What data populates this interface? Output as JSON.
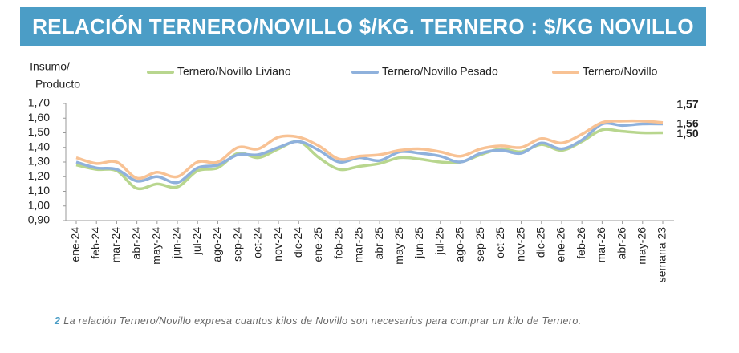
{
  "chart_data": {
    "type": "line",
    "title": "RELACIÓN TERNERO/NOVILLO $/KG. TERNERO : $/KG NOVILLO",
    "ylabel_lines": [
      "Insumo/",
      "Producto"
    ],
    "categories": [
      "ene-24",
      "feb-24",
      "mar-24",
      "abr-24",
      "may-24",
      "jun-24",
      "jul-24",
      "ago-24",
      "sep-24",
      "oct-24",
      "nov-24",
      "dic-24",
      "ene-25",
      "feb-25",
      "mar-25",
      "abr-25",
      "may-25",
      "jun-25",
      "jul-25",
      "ago-25",
      "sep-25",
      "oct-25",
      "nov-25",
      "dic-25",
      "ene-26",
      "feb-26",
      "mar-26",
      "abr-26",
      "may-26",
      "semana 23"
    ],
    "series": [
      {
        "name": "Ternero/Novillo Liviano",
        "color": "#b8d68e",
        "label_color": "#a9cf7c",
        "values": [
          1.28,
          1.25,
          1.24,
          1.12,
          1.15,
          1.13,
          1.24,
          1.26,
          1.36,
          1.33,
          1.39,
          1.44,
          1.33,
          1.25,
          1.27,
          1.29,
          1.33,
          1.32,
          1.3,
          1.3,
          1.35,
          1.39,
          1.37,
          1.42,
          1.38,
          1.44,
          1.52,
          1.51,
          1.5,
          1.5
        ],
        "value_labels": [
          null,
          null,
          null,
          null,
          null,
          null,
          null,
          null,
          null,
          null,
          null,
          null,
          null,
          null,
          null,
          null,
          null,
          null,
          null,
          null,
          null,
          null,
          null,
          null,
          null,
          null,
          null,
          null,
          null,
          "1,50"
        ]
      },
      {
        "name": "Ternero/Novillo Pesado",
        "color": "#8fb1dc",
        "label_color": "#4a86c8",
        "values": [
          1.3,
          1.26,
          1.25,
          1.17,
          1.2,
          1.16,
          1.26,
          1.28,
          1.35,
          1.35,
          1.4,
          1.44,
          1.38,
          1.3,
          1.33,
          1.31,
          1.37,
          1.36,
          1.34,
          1.3,
          1.36,
          1.38,
          1.36,
          1.43,
          1.39,
          1.45,
          1.56,
          1.55,
          1.56,
          1.56
        ],
        "value_labels": [
          null,
          null,
          null,
          null,
          null,
          null,
          null,
          null,
          null,
          null,
          null,
          null,
          null,
          null,
          null,
          null,
          null,
          null,
          null,
          null,
          null,
          null,
          null,
          null,
          null,
          null,
          null,
          null,
          null,
          "1,56"
        ]
      },
      {
        "name": "Ternero/Novillo",
        "color": "#f8c294",
        "label_color": "#f0a868",
        "values": [
          1.33,
          1.29,
          1.3,
          1.19,
          1.23,
          1.2,
          1.3,
          1.3,
          1.4,
          1.39,
          1.47,
          1.47,
          1.41,
          1.32,
          1.34,
          1.35,
          1.38,
          1.39,
          1.37,
          1.34,
          1.39,
          1.41,
          1.4,
          1.46,
          1.43,
          1.49,
          1.57,
          1.58,
          1.58,
          1.57
        ],
        "value_labels": [
          null,
          null,
          null,
          null,
          null,
          null,
          null,
          null,
          null,
          null,
          null,
          null,
          null,
          null,
          null,
          null,
          null,
          null,
          null,
          null,
          null,
          null,
          null,
          null,
          null,
          null,
          null,
          null,
          null,
          "1,57"
        ]
      }
    ],
    "ylim": [
      0.9,
      1.7
    ],
    "yticks": [
      {
        "value": 0.9,
        "label": "0,90"
      },
      {
        "value": 1.0,
        "label": "1,00"
      },
      {
        "value": 1.1,
        "label": "1,10"
      },
      {
        "value": 1.2,
        "label": "1,20"
      },
      {
        "value": 1.3,
        "label": "1,30"
      },
      {
        "value": 1.4,
        "label": "1,40"
      },
      {
        "value": 1.5,
        "label": "1,50"
      },
      {
        "value": 1.6,
        "label": "1,60"
      },
      {
        "value": 1.7,
        "label": "1,70"
      }
    ],
    "footnote_number": "2",
    "footnote": "La relación Ternero/Novillo expresa cuantos kilos de Novillo son necesarios para comprar un kilo de Ternero."
  }
}
